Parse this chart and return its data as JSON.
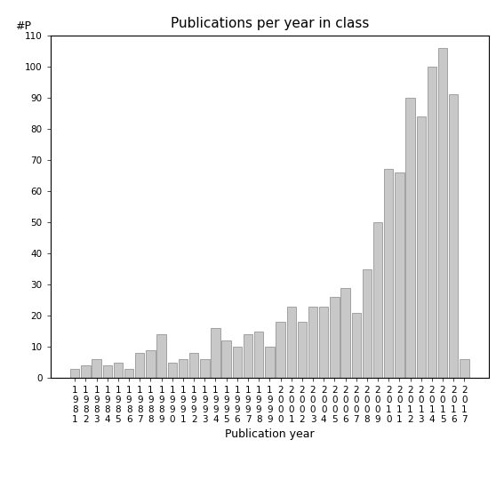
{
  "title": "Publications per year in class",
  "xlabel": "Publication year",
  "ylabel": "#P",
  "years": [
    "1981",
    "1982",
    "1983",
    "1984",
    "1985",
    "1986",
    "1987",
    "1988",
    "1989",
    "1990",
    "1991",
    "1992",
    "1993",
    "1994",
    "1995",
    "1996",
    "1997",
    "1998",
    "1999",
    "2000",
    "2001",
    "2002",
    "2003",
    "2004",
    "2005",
    "2006",
    "2007",
    "2008",
    "2009",
    "2010",
    "2011",
    "2012",
    "2013",
    "2014",
    "2015",
    "2016",
    "2017"
  ],
  "values": [
    3,
    4,
    6,
    4,
    5,
    3,
    8,
    9,
    14,
    5,
    6,
    8,
    6,
    16,
    12,
    10,
    14,
    15,
    10,
    18,
    23,
    18,
    23,
    23,
    26,
    29,
    21,
    35,
    50,
    67,
    66,
    90,
    84,
    100,
    106,
    91,
    6
  ],
  "bar_color": "#c8c8c8",
  "bar_edge_color": "#888888",
  "ylim": [
    0,
    110
  ],
  "yticks": [
    0,
    10,
    20,
    30,
    40,
    50,
    60,
    70,
    80,
    90,
    100,
    110
  ],
  "background_color": "#ffffff",
  "title_fontsize": 11,
  "label_fontsize": 9,
  "tick_fontsize": 7.5
}
